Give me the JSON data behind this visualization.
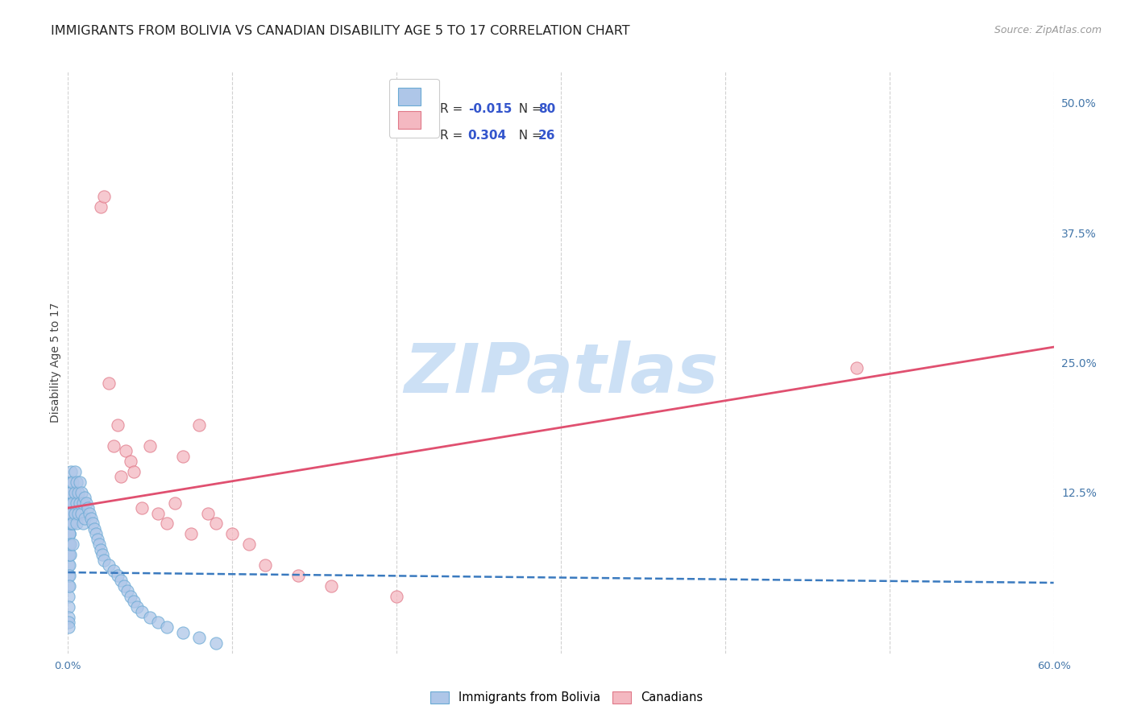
{
  "title": "IMMIGRANTS FROM BOLIVIA VS CANADIAN DISABILITY AGE 5 TO 17 CORRELATION CHART",
  "source": "Source: ZipAtlas.com",
  "ylabel": "Disability Age 5 to 17",
  "xlim": [
    0.0,
    0.6
  ],
  "ylim": [
    -0.03,
    0.53
  ],
  "xticklabels": [
    "0.0%",
    "",
    "",
    "",
    "",
    "",
    "60.0%"
  ],
  "xtick_positions": [
    0.0,
    0.1,
    0.2,
    0.3,
    0.4,
    0.5,
    0.6
  ],
  "ytick_labels_right": [
    "50.0%",
    "37.5%",
    "25.0%",
    "12.5%"
  ],
  "ytick_vals_right": [
    0.5,
    0.375,
    0.25,
    0.125
  ],
  "legend_labels": [
    "Immigrants from Bolivia",
    "Canadians"
  ],
  "legend_colors": [
    "#aec6e8",
    "#f4b8c1"
  ],
  "blue_scatter_x": [
    0.0005,
    0.0005,
    0.0005,
    0.0005,
    0.0005,
    0.0005,
    0.0005,
    0.0005,
    0.0005,
    0.0005,
    0.001,
    0.001,
    0.001,
    0.001,
    0.001,
    0.001,
    0.001,
    0.001,
    0.001,
    0.001,
    0.0015,
    0.0015,
    0.0015,
    0.0015,
    0.0015,
    0.0015,
    0.002,
    0.002,
    0.002,
    0.002,
    0.002,
    0.002,
    0.003,
    0.003,
    0.003,
    0.003,
    0.004,
    0.004,
    0.004,
    0.005,
    0.005,
    0.005,
    0.006,
    0.006,
    0.007,
    0.007,
    0.008,
    0.008,
    0.009,
    0.009,
    0.01,
    0.01,
    0.011,
    0.012,
    0.013,
    0.014,
    0.015,
    0.016,
    0.017,
    0.018,
    0.019,
    0.02,
    0.021,
    0.022,
    0.025,
    0.028,
    0.03,
    0.032,
    0.034,
    0.036,
    0.038,
    0.04,
    0.042,
    0.045,
    0.05,
    0.055,
    0.06,
    0.07,
    0.08,
    0.09
  ],
  "blue_scatter_y": [
    0.055,
    0.045,
    0.035,
    0.025,
    0.015,
    0.005,
    0.0,
    -0.005,
    0.065,
    0.075,
    0.085,
    0.075,
    0.055,
    0.045,
    0.035,
    0.095,
    0.085,
    0.065,
    0.105,
    0.085,
    0.065,
    0.115,
    0.095,
    0.075,
    0.125,
    0.105,
    0.135,
    0.115,
    0.095,
    0.145,
    0.125,
    0.105,
    0.135,
    0.115,
    0.095,
    0.075,
    0.145,
    0.125,
    0.105,
    0.135,
    0.115,
    0.095,
    0.125,
    0.105,
    0.135,
    0.115,
    0.125,
    0.105,
    0.115,
    0.095,
    0.12,
    0.1,
    0.115,
    0.11,
    0.105,
    0.1,
    0.095,
    0.09,
    0.085,
    0.08,
    0.075,
    0.07,
    0.065,
    0.06,
    0.055,
    0.05,
    0.045,
    0.04,
    0.035,
    0.03,
    0.025,
    0.02,
    0.015,
    0.01,
    0.005,
    0.0,
    -0.005,
    -0.01,
    -0.015,
    -0.02
  ],
  "pink_scatter_x": [
    0.02,
    0.022,
    0.025,
    0.028,
    0.03,
    0.032,
    0.035,
    0.038,
    0.04,
    0.045,
    0.05,
    0.055,
    0.06,
    0.065,
    0.07,
    0.075,
    0.08,
    0.085,
    0.09,
    0.1,
    0.11,
    0.12,
    0.14,
    0.16,
    0.2,
    0.48
  ],
  "pink_scatter_y": [
    0.4,
    0.41,
    0.23,
    0.17,
    0.19,
    0.14,
    0.165,
    0.155,
    0.145,
    0.11,
    0.17,
    0.105,
    0.095,
    0.115,
    0.16,
    0.085,
    0.19,
    0.105,
    0.095,
    0.085,
    0.075,
    0.055,
    0.045,
    0.035,
    0.025,
    0.245
  ],
  "blue_line_x": [
    0.0,
    0.6
  ],
  "blue_line_y": [
    0.048,
    0.038
  ],
  "pink_line_x": [
    0.0,
    0.6
  ],
  "pink_line_y": [
    0.11,
    0.265
  ],
  "watermark": "ZIPatlas",
  "watermark_color": "#cce0f5",
  "background_color": "#ffffff",
  "grid_color": "#cccccc",
  "title_fontsize": 11.5,
  "axis_label_fontsize": 10,
  "tick_fontsize": 9.5,
  "source_fontsize": 9,
  "legend_R_color": "#3355aa",
  "legend_N_color": "#3355aa"
}
